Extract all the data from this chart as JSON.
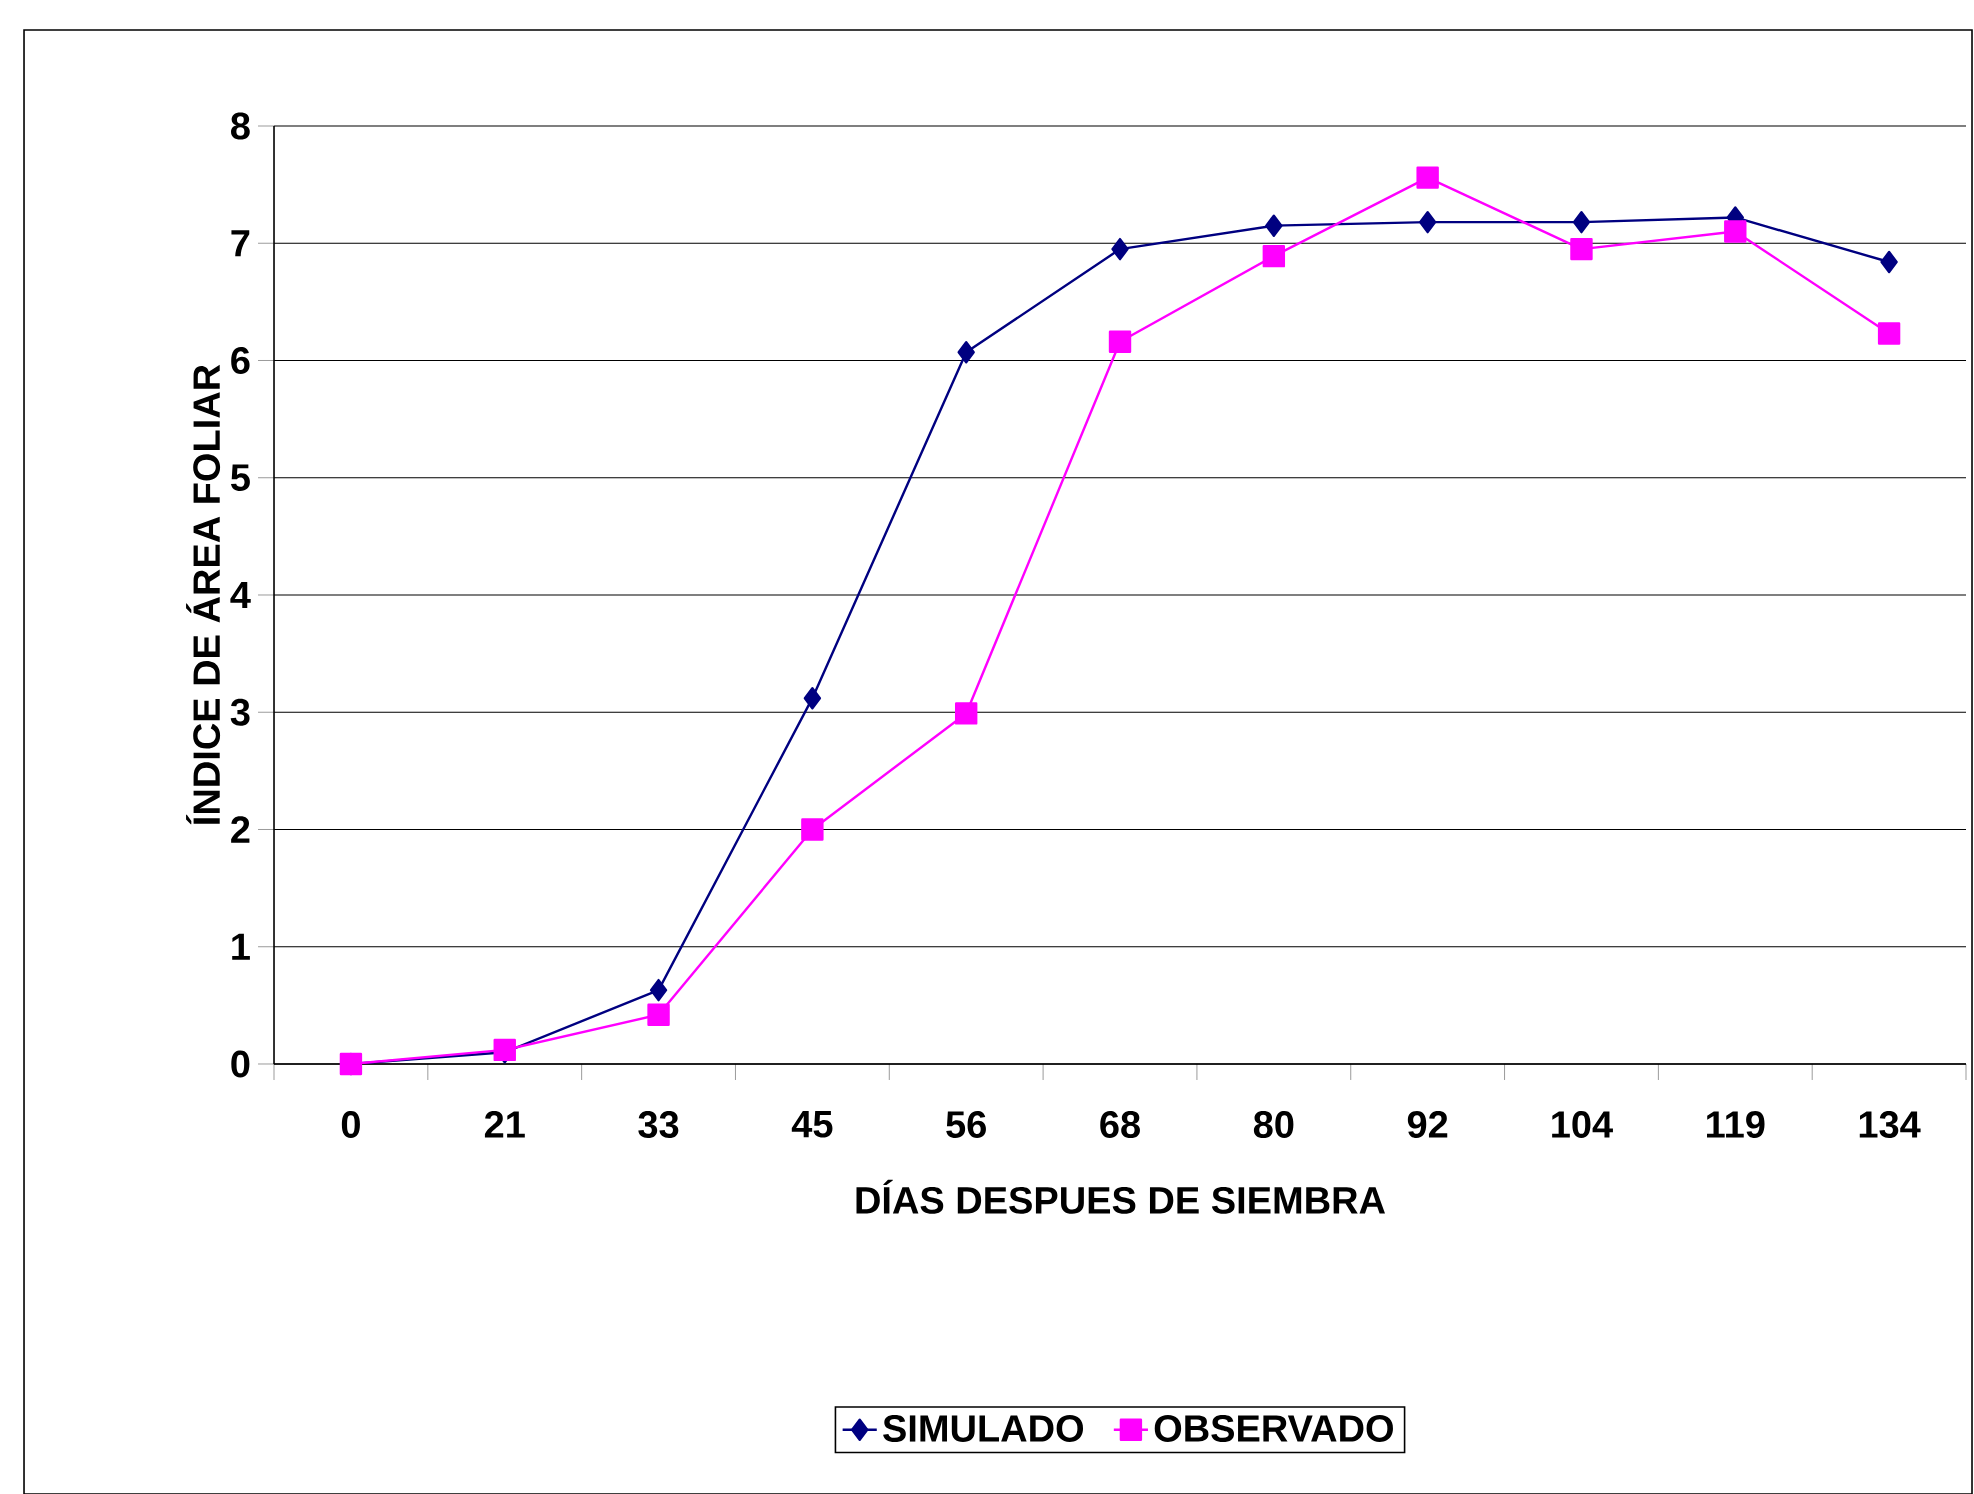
{
  "chart_data": {
    "type": "line",
    "xlabel": "DÍAS DESPUES DE SIEMBRA",
    "ylabel": "ÍNDICE DE ÁREA FOLIAR",
    "categories": [
      "0",
      "21",
      "33",
      "45",
      "56",
      "68",
      "80",
      "92",
      "104",
      "119",
      "134"
    ],
    "series": [
      {
        "name": "SIMULADO",
        "color": "#000080",
        "marker": "diamond",
        "values": [
          0,
          0.1,
          0.63,
          3.12,
          6.07,
          6.95,
          7.15,
          7.18,
          7.18,
          7.22,
          6.84
        ]
      },
      {
        "name": "OBSERVADO",
        "color": "#ff00ff",
        "marker": "square",
        "values": [
          0,
          0.12,
          0.42,
          2.0,
          2.99,
          6.16,
          6.89,
          7.56,
          6.95,
          7.1,
          6.23
        ]
      }
    ],
    "ylim": [
      0,
      8
    ],
    "yticks": [
      0,
      1,
      2,
      3,
      4,
      5,
      6,
      7,
      8
    ],
    "grid": "y",
    "legend": "bottom",
    "line_style": "solid"
  }
}
